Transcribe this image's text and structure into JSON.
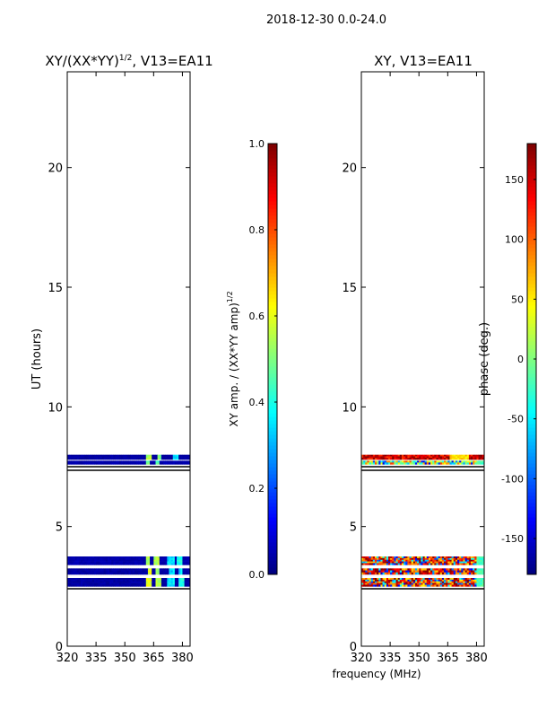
{
  "figure_title": "2018-12-30 0.0-24.0",
  "shared_xlabel": "frequency (MHz)",
  "chart_data": [
    {
      "type": "heatmap",
      "title": "XY/(XX*YY)^1/2, V13=EA11",
      "title_main": "XY/(XX*YY)",
      "title_sup": "1/2",
      "title_tail": ", V13=EA11",
      "xlabel": "frequency (MHz)",
      "ylabel": "UT (hours)",
      "xlim": [
        320,
        384
      ],
      "ylim": [
        0,
        24
      ],
      "xticks": [
        320,
        335,
        350,
        365,
        380
      ],
      "yticks": [
        0,
        5,
        10,
        15,
        20
      ],
      "colorbar": {
        "label": "XY amp. / (XX*YY amp)^1/2",
        "label_main": "XY amp. / (XX*YY amp)",
        "label_sup": "1/2",
        "range": [
          0.0,
          1.0
        ],
        "ticks": [
          "0.0",
          "0.2",
          "0.4",
          "0.6",
          "0.8",
          "1.0"
        ],
        "colormap": "jet"
      },
      "bands": [
        {
          "ut": [
            7.8,
            8.0
          ],
          "base": 0.02,
          "bright": [
            [
              361,
              364,
              0.5
            ],
            [
              367,
              369,
              0.45
            ],
            [
              375,
              378,
              0.3
            ]
          ]
        },
        {
          "ut": [
            7.6,
            7.75
          ],
          "base": 0.03,
          "bright": [
            [
              361,
              363,
              0.45
            ],
            [
              366,
              368,
              0.4
            ]
          ]
        },
        {
          "ut": [
            3.4,
            3.75
          ],
          "base": 0.03,
          "bright": [
            [
              361,
              363,
              0.5
            ],
            [
              365,
              368,
              0.5
            ],
            [
              372,
              376,
              0.3
            ],
            [
              377,
              380,
              0.35
            ]
          ]
        },
        {
          "ut": [
            3.0,
            3.25
          ],
          "base": 0.02,
          "bright": [
            [
              362,
              364,
              0.55
            ],
            [
              366,
              368,
              0.45
            ],
            [
              373,
              376,
              0.28
            ],
            [
              378,
              380,
              0.3
            ]
          ]
        },
        {
          "ut": [
            2.5,
            2.85
          ],
          "base": 0.02,
          "bright": [
            [
              361,
              364,
              0.55
            ],
            [
              366,
              369,
              0.5
            ],
            [
              372,
              376,
              0.3
            ],
            [
              378,
              381,
              0.35
            ]
          ]
        }
      ],
      "lines_ut": [
        7.5,
        7.35,
        2.4
      ]
    },
    {
      "type": "heatmap",
      "title": "XY, V13=EA11",
      "xlabel": "frequency (MHz)",
      "ylabel": "",
      "xlim": [
        320,
        384
      ],
      "ylim": [
        0,
        24
      ],
      "xticks": [
        320,
        335,
        350,
        365,
        380
      ],
      "yticks": [
        0,
        5,
        10,
        15,
        20
      ],
      "colorbar": {
        "label": "phase (deg.)",
        "range": [
          -180,
          180
        ],
        "ticks": [
          -150,
          -100,
          -50,
          0,
          50,
          100,
          150
        ],
        "colormap": "jet"
      },
      "bands": [
        {
          "ut": [
            7.8,
            8.0
          ],
          "base": 150,
          "mode": "warm"
        },
        {
          "ut": [
            7.6,
            7.75
          ],
          "base": 40,
          "mode": "mixed"
        },
        {
          "ut": [
            3.4,
            3.75
          ],
          "base": 120,
          "mode": "mixed"
        },
        {
          "ut": [
            3.0,
            3.25
          ],
          "base": 130,
          "mode": "mixed"
        },
        {
          "ut": [
            2.5,
            2.85
          ],
          "base": 120,
          "mode": "mixed"
        }
      ],
      "lines_ut": [
        7.5,
        7.35,
        2.4
      ]
    }
  ]
}
